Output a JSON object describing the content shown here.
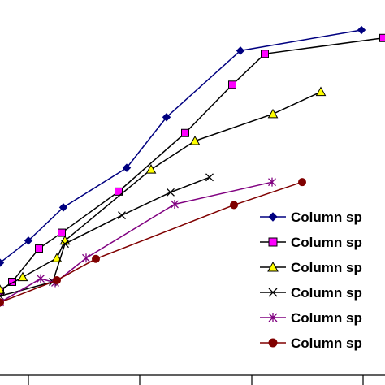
{
  "chart_data": {
    "type": "line",
    "title": "",
    "xlabel": "",
    "ylabel": "",
    "xlim": [
      0,
      474
    ],
    "ylim": [
      0,
      474
    ],
    "grid": false,
    "legend_position": "right",
    "series": [
      {
        "name": "Column sp",
        "color": "#000080",
        "marker": "diamond",
        "points": [
          [
            0,
            142
          ],
          [
            35,
            170
          ],
          [
            78,
            212
          ],
          [
            156,
            262
          ],
          [
            205,
            326
          ],
          [
            296,
            410
          ],
          [
            445,
            436
          ]
        ]
      },
      {
        "name": "Column sp",
        "color": "#000000",
        "marker": "square",
        "marker_fill": "#ff00ff",
        "points": [
          [
            0,
            106
          ],
          [
            15,
            118
          ],
          [
            48,
            160
          ],
          [
            76,
            180
          ],
          [
            146,
            232
          ],
          [
            228,
            306
          ],
          [
            286,
            367
          ],
          [
            326,
            406
          ],
          [
            472,
            426
          ]
        ]
      },
      {
        "name": "Column sp",
        "color": "#000000",
        "marker": "triangle",
        "marker_fill": "#ffff00",
        "points": [
          [
            0,
            108
          ],
          [
            28,
            124
          ],
          [
            70,
            148
          ],
          [
            80,
            170
          ],
          [
            186,
            260
          ],
          [
            240,
            296
          ],
          [
            336,
            330
          ],
          [
            395,
            358
          ]
        ]
      },
      {
        "name": "Column sp",
        "color": "#000000",
        "marker": "x",
        "points": [
          [
            0,
            100
          ],
          [
            65,
            118
          ],
          [
            80,
            166
          ],
          [
            150,
            202
          ],
          [
            210,
            231
          ],
          [
            258,
            250
          ]
        ]
      },
      {
        "name": "Column sp",
        "color": "#800080",
        "marker": "asterisk",
        "points": [
          [
            0,
            92
          ],
          [
            50,
            122
          ],
          [
            68,
            117
          ],
          [
            106,
            148
          ],
          [
            215,
            216
          ],
          [
            335,
            244
          ]
        ]
      },
      {
        "name": "Column sp",
        "color": "#800000",
        "marker": "circle",
        "marker_fill": "#800000",
        "points": [
          [
            0,
            92
          ],
          [
            70,
            120
          ],
          [
            118,
            147
          ],
          [
            288,
            215
          ],
          [
            372,
            244
          ]
        ]
      }
    ],
    "x_ticks": [
      35,
      172,
      310,
      447
    ],
    "legend": [
      "Column sp",
      "Column sp",
      "Column sp",
      "Column sp",
      "Column sp",
      "Column sp"
    ]
  }
}
